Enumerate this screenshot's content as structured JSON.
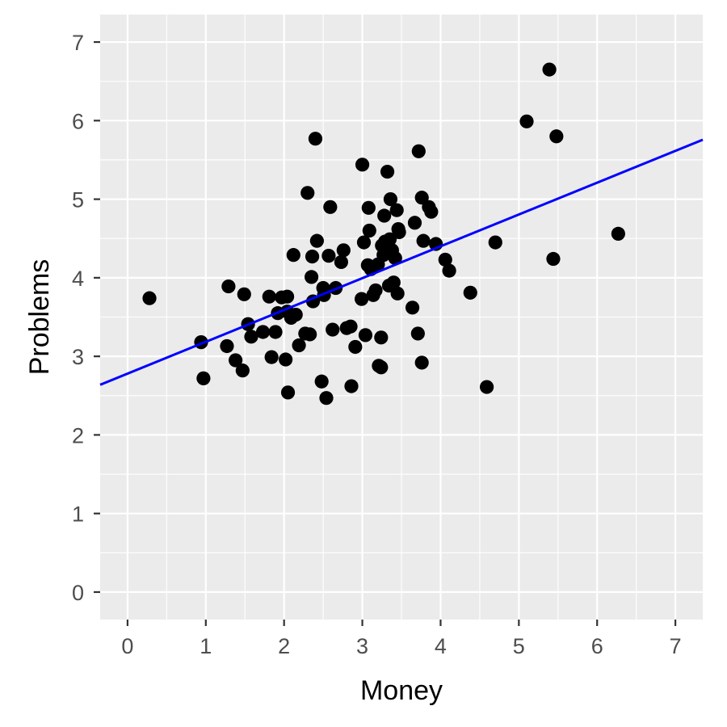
{
  "chart_data": {
    "type": "scatter",
    "title": "",
    "xlabel": "Money",
    "ylabel": "Problems",
    "xlim": [
      -0.35,
      7.35
    ],
    "ylim": [
      -0.35,
      7.35
    ],
    "x_ticks": [
      0,
      1,
      2,
      3,
      4,
      5,
      6,
      7
    ],
    "y_ticks": [
      0,
      1,
      2,
      3,
      4,
      5,
      6,
      7
    ],
    "grid": true,
    "legend": "none",
    "colors": {
      "panel": "#ebebeb",
      "grid": "#ffffff",
      "point": "#000000",
      "line": "#0000ff",
      "tick_text": "#4d4d4d",
      "axis_title": "#000000"
    },
    "fit_line": {
      "intercept": 2.78,
      "slope": 0.405
    },
    "points": [
      [
        0.28,
        3.74
      ],
      [
        0.94,
        3.18
      ],
      [
        0.97,
        2.72
      ],
      [
        1.27,
        3.13
      ],
      [
        1.29,
        3.89
      ],
      [
        1.38,
        2.95
      ],
      [
        1.47,
        2.82
      ],
      [
        1.49,
        3.79
      ],
      [
        1.54,
        3.41
      ],
      [
        1.58,
        3.25
      ],
      [
        1.73,
        3.31
      ],
      [
        1.81,
        3.76
      ],
      [
        1.84,
        2.99
      ],
      [
        1.89,
        3.31
      ],
      [
        1.92,
        3.55
      ],
      [
        1.97,
        3.75
      ],
      [
        2.02,
        2.96
      ],
      [
        2.04,
        3.76
      ],
      [
        2.04,
        3.57
      ],
      [
        2.05,
        2.54
      ],
      [
        2.09,
        3.49
      ],
      [
        2.12,
        4.29
      ],
      [
        2.15,
        3.53
      ],
      [
        2.19,
        3.14
      ],
      [
        2.27,
        3.29
      ],
      [
        2.3,
        5.08
      ],
      [
        2.33,
        3.28
      ],
      [
        2.35,
        4.01
      ],
      [
        2.36,
        4.27
      ],
      [
        2.37,
        3.7
      ],
      [
        2.4,
        5.77
      ],
      [
        2.42,
        4.47
      ],
      [
        2.48,
        2.68
      ],
      [
        2.5,
        3.87
      ],
      [
        2.51,
        3.78
      ],
      [
        2.54,
        2.47
      ],
      [
        2.57,
        4.28
      ],
      [
        2.59,
        4.9
      ],
      [
        2.62,
        3.34
      ],
      [
        2.66,
        3.87
      ],
      [
        2.73,
        4.2
      ],
      [
        2.76,
        4.35
      ],
      [
        2.8,
        3.36
      ],
      [
        2.85,
        3.38
      ],
      [
        2.86,
        2.62
      ],
      [
        2.91,
        3.12
      ],
      [
        2.99,
        3.73
      ],
      [
        3.0,
        5.44
      ],
      [
        3.02,
        4.45
      ],
      [
        3.04,
        3.27
      ],
      [
        3.07,
        4.16
      ],
      [
        3.08,
        4.89
      ],
      [
        3.09,
        4.6
      ],
      [
        3.11,
        4.11
      ],
      [
        3.14,
        3.78
      ],
      [
        3.17,
        3.84
      ],
      [
        3.2,
        4.17
      ],
      [
        3.21,
        2.88
      ],
      [
        3.24,
        2.86
      ],
      [
        3.24,
        3.24
      ],
      [
        3.25,
        4.41
      ],
      [
        3.27,
        4.29
      ],
      [
        3.28,
        4.79
      ],
      [
        3.29,
        4.46
      ],
      [
        3.32,
        5.35
      ],
      [
        3.34,
        3.9
      ],
      [
        3.35,
        4.49
      ],
      [
        3.36,
        5.0
      ],
      [
        3.38,
        4.35
      ],
      [
        3.4,
        3.94
      ],
      [
        3.42,
        4.25
      ],
      [
        3.44,
        4.86
      ],
      [
        3.45,
        3.8
      ],
      [
        3.46,
        4.62
      ],
      [
        3.47,
        4.58
      ],
      [
        3.64,
        3.62
      ],
      [
        3.67,
        4.7
      ],
      [
        3.71,
        3.29
      ],
      [
        3.72,
        5.61
      ],
      [
        3.76,
        5.02
      ],
      [
        3.76,
        2.92
      ],
      [
        3.78,
        4.47
      ],
      [
        3.85,
        4.9
      ],
      [
        3.88,
        4.84
      ],
      [
        3.94,
        4.43
      ],
      [
        4.06,
        4.23
      ],
      [
        4.11,
        4.09
      ],
      [
        4.38,
        3.81
      ],
      [
        4.59,
        2.61
      ],
      [
        4.7,
        4.45
      ],
      [
        5.1,
        5.99
      ],
      [
        5.39,
        6.65
      ],
      [
        5.44,
        4.24
      ],
      [
        5.48,
        5.8
      ],
      [
        6.27,
        4.56
      ]
    ]
  }
}
